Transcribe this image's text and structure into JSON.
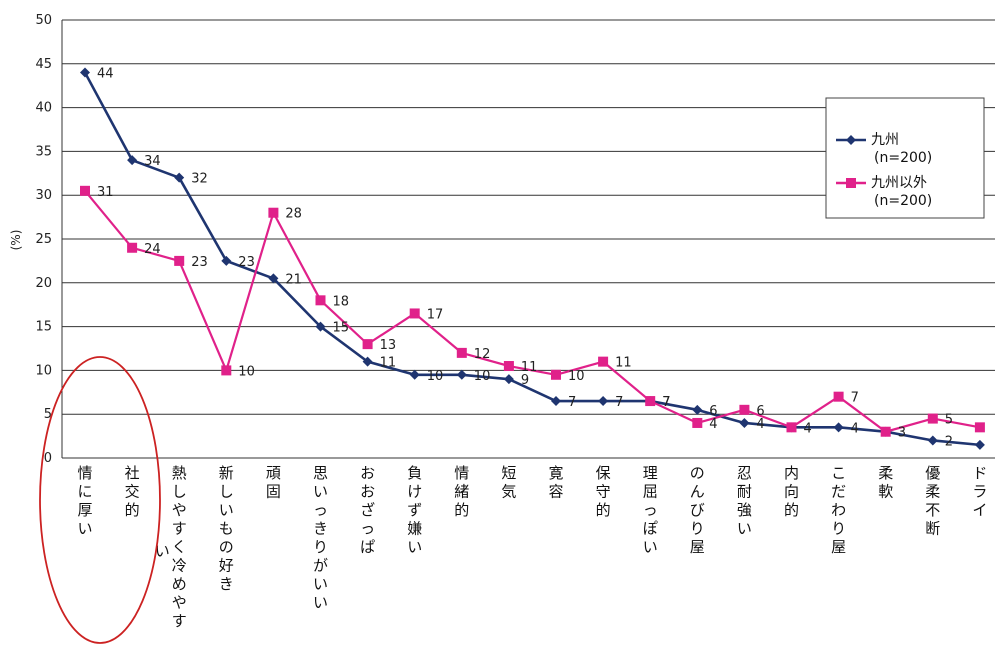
{
  "chart_data": {
    "type": "line",
    "ylabel": "(%)",
    "ylim": [
      0,
      50
    ],
    "yticks": [
      0,
      5,
      10,
      15,
      20,
      25,
      30,
      35,
      40,
      45,
      50
    ],
    "grid": true,
    "legend_position": "top-right",
    "categories": [
      "情に厚い",
      "社交的",
      "熱しやすく冷めやすい",
      "新しいもの好き",
      "頑固",
      "思いっきりがいい",
      "おおざっぱ",
      "負けず嫌い",
      "情緒的",
      "短気",
      "寛容",
      "保守的",
      "理屈っぽい",
      "のんびり屋",
      "忍耐強い",
      "内向的",
      "こだわり屋",
      "柔軟",
      "優柔不断",
      "ドライ"
    ],
    "series": [
      {
        "name": "九州",
        "sublabel": "(n=200)",
        "color": "#1f3570",
        "marker": "diamond",
        "values": [
          44,
          34,
          32,
          22.5,
          20.5,
          15,
          11,
          9.5,
          9.5,
          9,
          6.5,
          6.5,
          6.5,
          5.5,
          4,
          3.5,
          3.5,
          3,
          2,
          1.5
        ],
        "labels": [
          "44",
          "34",
          "32",
          "23",
          "21",
          "15",
          "11",
          "10",
          "10",
          "9",
          "7",
          "7",
          "7",
          "6",
          "4",
          "4",
          "4",
          "3",
          "2",
          ""
        ]
      },
      {
        "name": "九州以外",
        "sublabel": "(n=200)",
        "color": "#e0218a",
        "marker": "square",
        "values": [
          30.5,
          24,
          22.5,
          10,
          28,
          18,
          13,
          16.5,
          12,
          10.5,
          9.5,
          11,
          6.5,
          4,
          5.5,
          3.5,
          7,
          3,
          4.5,
          3.5
        ],
        "labels": [
          "31",
          "24",
          "23",
          "10",
          "28",
          "18",
          "13",
          "17",
          "12",
          "11",
          "10",
          "11",
          "7",
          "4",
          "6",
          "",
          "7",
          "",
          "5",
          ""
        ]
      }
    ],
    "annotation": {
      "shape": "ellipse",
      "color": "#cc2222",
      "target": "情に厚い"
    }
  }
}
